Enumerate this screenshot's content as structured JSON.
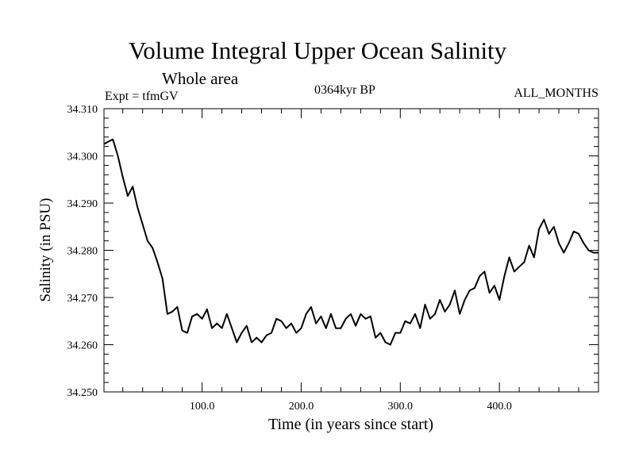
{
  "chart_data": {
    "type": "line",
    "title": "Volume Integral Upper Ocean Salinity",
    "subtitle": "Whole area",
    "experiment_label": "Expt = tfmGV",
    "period_label": "0364kyr BP",
    "months_label": "ALL_MONTHS",
    "xlabel": "Time (in years since start)",
    "ylabel": "Salinity (in PSU)",
    "xlim": [
      1,
      500
    ],
    "ylim": [
      34.25,
      34.31
    ],
    "x_tick_labels": [
      "100.0",
      "200.0",
      "300.0",
      "400.0"
    ],
    "x_tick_values": [
      100,
      200,
      300,
      400
    ],
    "y_tick_labels": [
      "34.250",
      "34.260",
      "34.270",
      "34.280",
      "34.290",
      "34.300",
      "34.310"
    ],
    "y_tick_values": [
      34.25,
      34.26,
      34.27,
      34.28,
      34.29,
      34.3,
      34.31
    ],
    "grid": false,
    "series": [
      {
        "color": "#000000",
        "x": [
          1,
          5,
          10,
          15,
          20,
          25,
          30,
          35,
          40,
          45,
          50,
          55,
          60,
          65,
          70,
          75,
          80,
          85,
          90,
          95,
          100,
          105,
          110,
          115,
          120,
          125,
          130,
          135,
          140,
          145,
          150,
          155,
          160,
          165,
          170,
          175,
          180,
          185,
          190,
          195,
          200,
          205,
          210,
          215,
          220,
          225,
          230,
          235,
          240,
          245,
          250,
          255,
          260,
          265,
          270,
          275,
          280,
          285,
          290,
          295,
          300,
          305,
          310,
          315,
          320,
          325,
          330,
          335,
          340,
          345,
          350,
          355,
          360,
          365,
          370,
          375,
          380,
          385,
          390,
          395,
          400,
          405,
          410,
          415,
          420,
          425,
          430,
          435,
          440,
          445,
          450,
          455,
          460,
          465,
          470,
          475,
          480,
          485,
          490,
          495,
          500
        ],
        "y": [
          34.3025,
          34.303,
          34.3035,
          34.3,
          34.2955,
          34.2915,
          34.2935,
          34.289,
          34.2855,
          34.282,
          34.2805,
          34.2775,
          34.274,
          34.2665,
          34.267,
          34.268,
          34.263,
          34.2625,
          34.266,
          34.2665,
          34.2655,
          34.2675,
          34.2635,
          34.2645,
          34.2635,
          34.2665,
          34.2635,
          34.2605,
          34.2625,
          34.264,
          34.2605,
          34.2615,
          34.2605,
          34.262,
          34.2625,
          34.2655,
          34.265,
          34.2635,
          34.2645,
          34.2625,
          34.2635,
          34.2665,
          34.268,
          34.2645,
          34.266,
          34.2635,
          34.2665,
          34.2635,
          34.2635,
          34.2655,
          34.2665,
          34.264,
          34.2665,
          34.2655,
          34.266,
          34.2615,
          34.2625,
          34.2605,
          34.26,
          34.2625,
          34.2625,
          34.265,
          34.2645,
          34.2665,
          34.2635,
          34.2685,
          34.2655,
          34.2665,
          34.2695,
          34.267,
          34.2685,
          34.2715,
          34.2665,
          34.2695,
          34.2715,
          34.272,
          34.2745,
          34.2755,
          34.271,
          34.2725,
          34.2695,
          34.2745,
          34.2785,
          34.2755,
          34.2765,
          34.2775,
          34.281,
          34.2785,
          34.2845,
          34.2865,
          34.2835,
          34.285,
          34.2815,
          34.2795,
          34.2815,
          34.284,
          34.2835,
          34.2815,
          34.28,
          34.2795,
          34.2795
        ]
      }
    ]
  }
}
